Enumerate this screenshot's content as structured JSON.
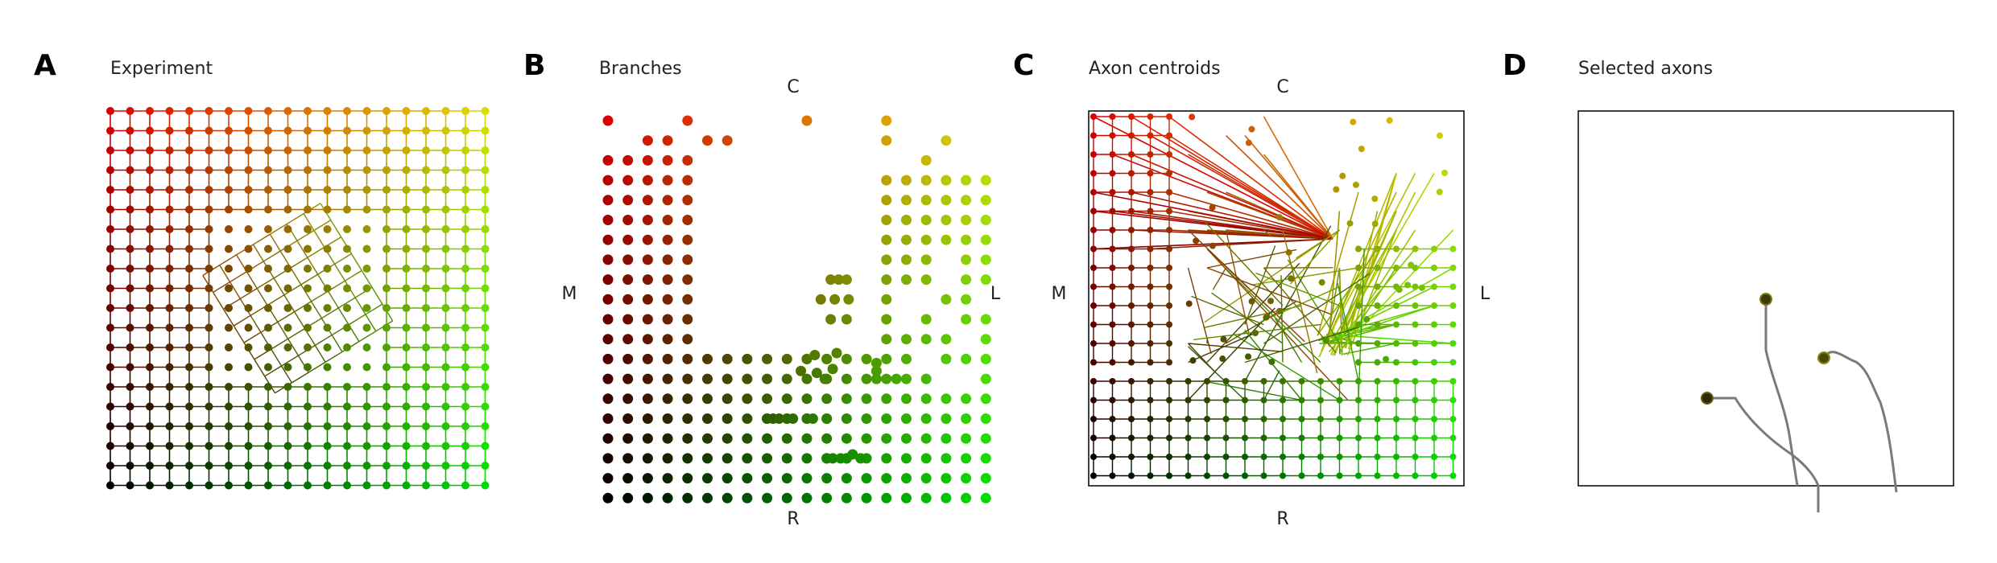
{
  "panels": [
    {
      "letter": "A",
      "title": "Experiment"
    },
    {
      "letter": "B",
      "title": "Branches",
      "labels": {
        "top": "C",
        "left": "M",
        "right": "L",
        "bottom": "R"
      }
    },
    {
      "letter": "C",
      "title": "Axon centroids",
      "labels": {
        "top": "C",
        "left": "M",
        "right": "L",
        "bottom": "R"
      }
    },
    {
      "letter": "D",
      "title": "Selected axons"
    }
  ],
  "grid": {
    "size": 20
  },
  "colors": {
    "red": "#e00000",
    "green": "#00e000",
    "black": "#000000",
    "frame": "#000000",
    "axon": "#7a7a7a"
  }
}
